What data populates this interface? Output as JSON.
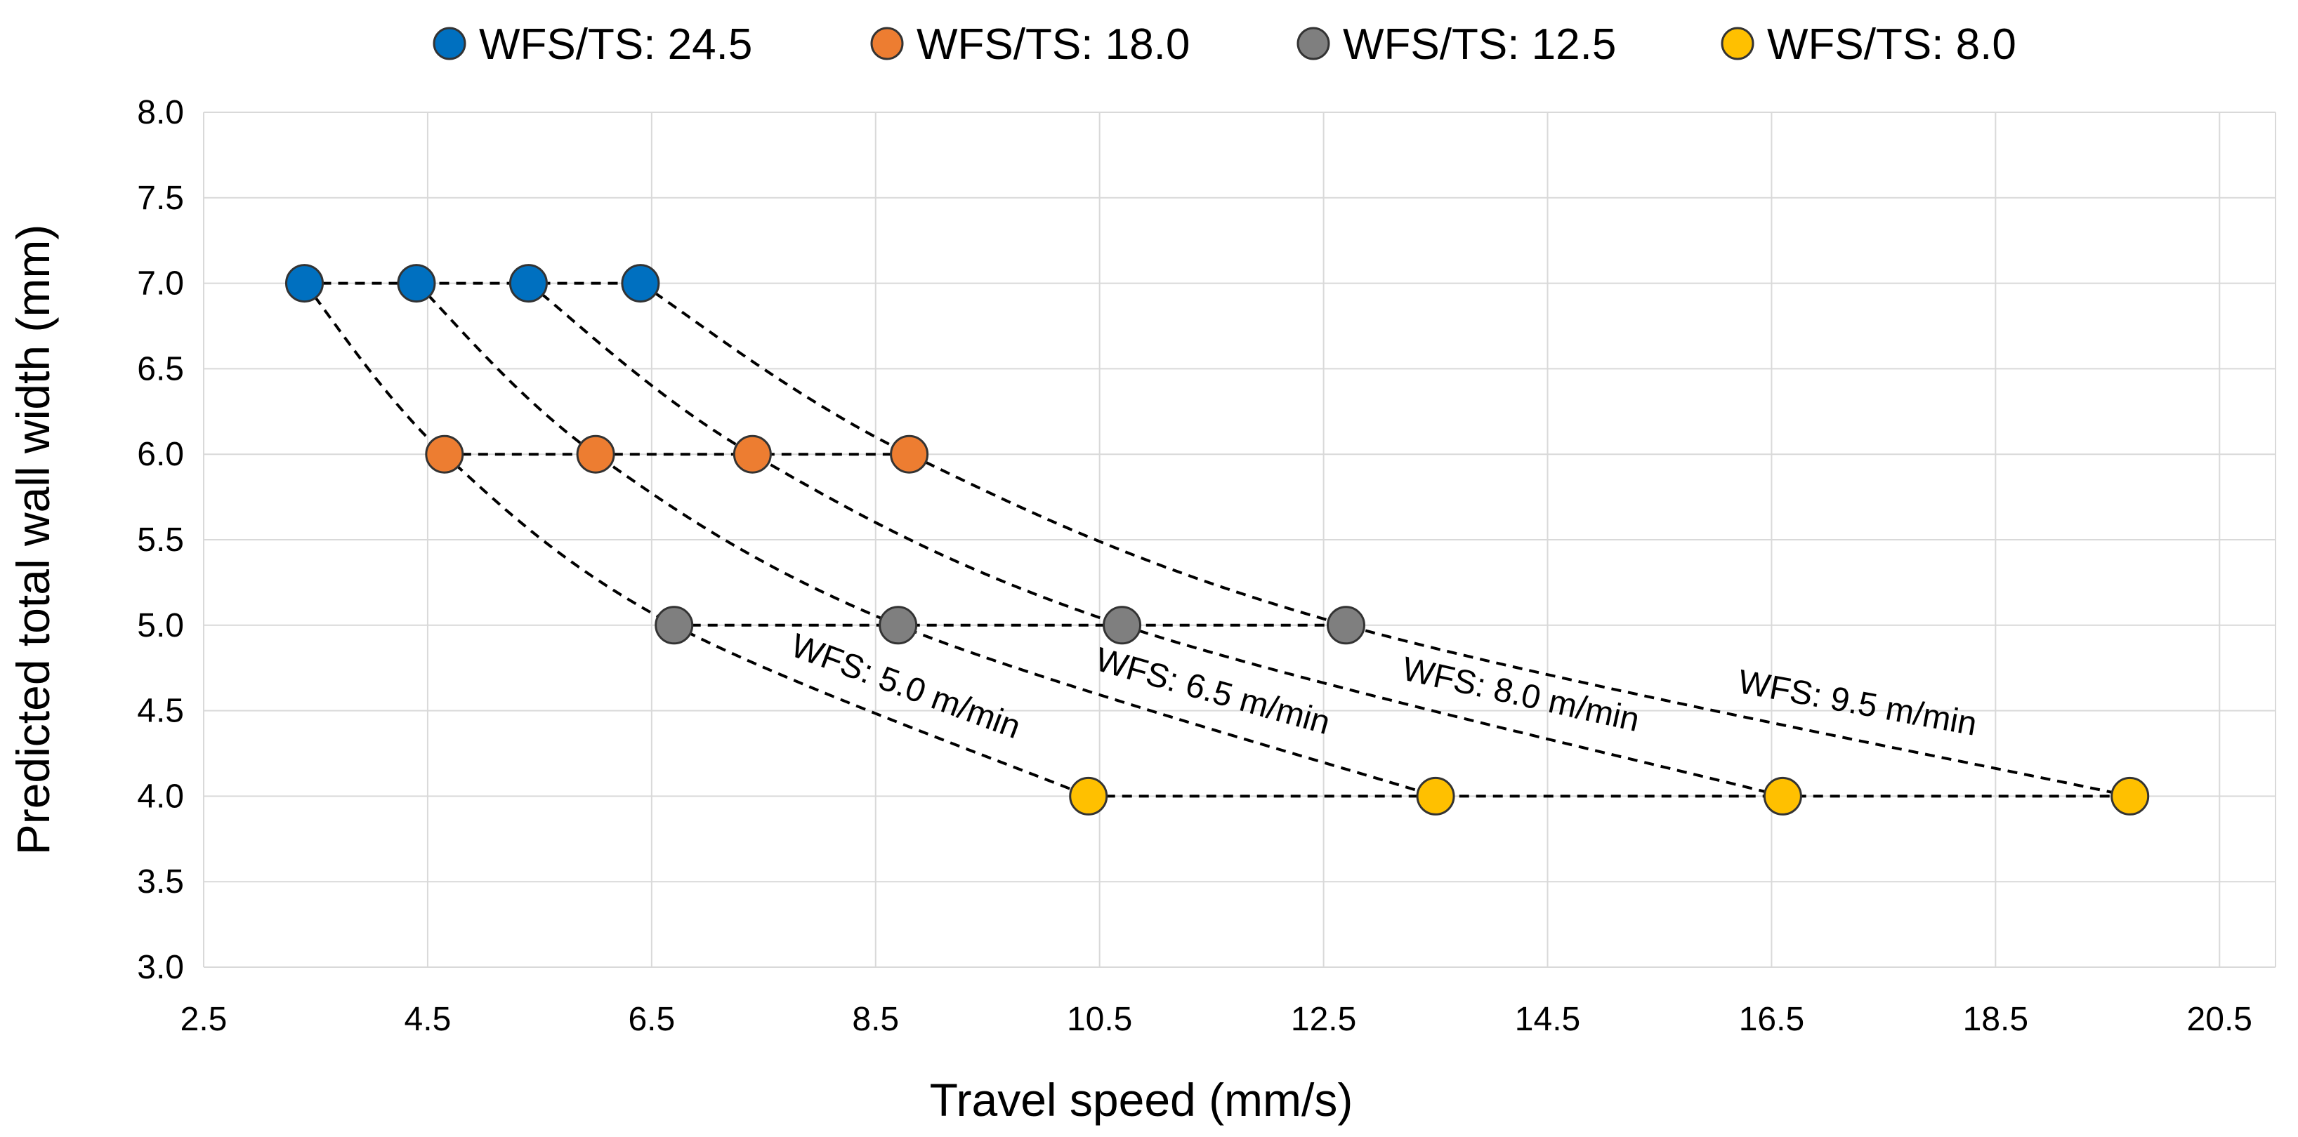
{
  "chart_data": {
    "type": "scatter",
    "title": "",
    "xlabel": "Travel speed (mm/s)",
    "ylabel": "Predicted total wall width (mm)",
    "xlim": [
      2.5,
      21.0
    ],
    "ylim": [
      3.0,
      8.0
    ],
    "xticks": [
      2.5,
      4.5,
      6.5,
      8.5,
      10.5,
      12.5,
      14.5,
      16.5,
      18.5,
      20.5
    ],
    "yticks": [
      3.0,
      3.5,
      4.0,
      4.5,
      5.0,
      5.5,
      6.0,
      6.5,
      7.0,
      7.5,
      8.0
    ],
    "grid": true,
    "legend_position": "top-center",
    "series": [
      {
        "name": "WFS/TS: 24.5",
        "color": "#0070C0",
        "points": [
          [
            3.4,
            7.0
          ],
          [
            4.4,
            7.0
          ],
          [
            5.4,
            7.0
          ],
          [
            6.4,
            7.0
          ]
        ]
      },
      {
        "name": "WFS/TS: 18.0",
        "color": "#ED7D31",
        "points": [
          [
            4.65,
            6.0
          ],
          [
            6.0,
            6.0
          ],
          [
            7.4,
            6.0
          ],
          [
            8.8,
            6.0
          ]
        ]
      },
      {
        "name": "WFS/TS: 12.5",
        "color": "#7F7F7F",
        "points": [
          [
            6.7,
            5.0
          ],
          [
            8.7,
            5.0
          ],
          [
            10.7,
            5.0
          ],
          [
            12.7,
            5.0
          ]
        ]
      },
      {
        "name": "WFS/TS: 8.0",
        "color": "#FFC000",
        "points": [
          [
            10.4,
            4.0
          ],
          [
            13.5,
            4.0
          ],
          [
            16.6,
            4.0
          ],
          [
            19.7,
            4.0
          ]
        ]
      }
    ],
    "wfs_curves": [
      {
        "label": "WFS: 5.0 m/min",
        "points": [
          [
            3.4,
            7.0
          ],
          [
            4.65,
            6.0
          ],
          [
            6.7,
            5.0
          ],
          [
            10.4,
            4.0
          ]
        ]
      },
      {
        "label": "WFS: 6.5 m/min",
        "points": [
          [
            4.4,
            7.0
          ],
          [
            6.0,
            6.0
          ],
          [
            8.7,
            5.0
          ],
          [
            13.5,
            4.0
          ]
        ]
      },
      {
        "label": "WFS: 8.0 m/min",
        "points": [
          [
            5.4,
            7.0
          ],
          [
            7.4,
            6.0
          ],
          [
            10.7,
            5.0
          ],
          [
            16.6,
            4.0
          ]
        ]
      },
      {
        "label": "WFS: 9.5 m/min",
        "points": [
          [
            6.4,
            7.0
          ],
          [
            8.8,
            6.0
          ],
          [
            12.7,
            5.0
          ],
          [
            19.7,
            4.0
          ]
        ]
      }
    ]
  }
}
